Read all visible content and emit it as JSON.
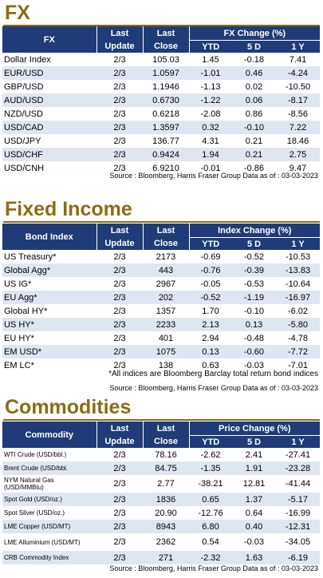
{
  "fx": {
    "title": "FX",
    "headers": {
      "name": "FX",
      "last_update": [
        "Last",
        "Update"
      ],
      "last_close": [
        "Last",
        "Close"
      ],
      "group": "FX Change (%)",
      "ytd": "YTD",
      "d5": "5 D",
      "y1": "1 Y"
    },
    "rows": [
      {
        "name": "Dollar Index",
        "update": "2/3",
        "close": "105.03",
        "ytd": "1.45",
        "d5": "-0.18",
        "y1": "7.41"
      },
      {
        "name": "EUR/USD",
        "update": "2/3",
        "close": "1.0597",
        "ytd": "-1.01",
        "d5": "0.46",
        "y1": "-4.24"
      },
      {
        "name": "GBP/USD",
        "update": "2/3",
        "close": "1.1946",
        "ytd": "-1.13",
        "d5": "0.02",
        "y1": "-10.50"
      },
      {
        "name": "AUD/USD",
        "update": "2/3",
        "close": "0.6730",
        "ytd": "-1.22",
        "d5": "0.06",
        "y1": "-8.17"
      },
      {
        "name": "NZD/USD",
        "update": "2/3",
        "close": "0.6218",
        "ytd": "-2.08",
        "d5": "0.86",
        "y1": "-8.56"
      },
      {
        "name": "USD/CAD",
        "update": "2/3",
        "close": "1.3597",
        "ytd": "0.32",
        "d5": "-0.10",
        "y1": "7.22"
      },
      {
        "name": "USD/JPY",
        "update": "2/3",
        "close": "136.77",
        "ytd": "4.31",
        "d5": "0.21",
        "y1": "18.46"
      },
      {
        "name": "USD/CHF",
        "update": "2/3",
        "close": "0.9424",
        "ytd": "1.94",
        "d5": "0.21",
        "y1": "2.75"
      },
      {
        "name": "USD/CNH",
        "update": "2/3",
        "close": "6.9210",
        "ytd": "-0.01",
        "d5": "-0.86",
        "y1": "9.47"
      }
    ],
    "source": "Source : Bloomberg, Harris Fraser Group Data as of : 03-03-2023"
  },
  "fixed_income": {
    "title": "Fixed Income",
    "headers": {
      "name": "Bond Index",
      "last_update": [
        "Last",
        "Update"
      ],
      "last_close": [
        "Last",
        "Close"
      ],
      "group": "Index Change (%)",
      "ytd": "YTD",
      "d5": "5 D",
      "y1": "1 Y"
    },
    "rows": [
      {
        "name": "US Treasury*",
        "update": "2/3",
        "close": "2173",
        "ytd": "-0.69",
        "d5": "-0.52",
        "y1": "-10.53"
      },
      {
        "name": "Global Agg*",
        "update": "2/3",
        "close": "443",
        "ytd": "-0.76",
        "d5": "-0.39",
        "y1": "-13.83"
      },
      {
        "name": "US IG*",
        "update": "2/3",
        "close": "2967",
        "ytd": "-0.05",
        "d5": "-0.53",
        "y1": "-10.64"
      },
      {
        "name": "EU Agg*",
        "update": "2/3",
        "close": "202",
        "ytd": "-0.52",
        "d5": "-1.19",
        "y1": "-16.97"
      },
      {
        "name": "Global HY*",
        "update": "2/3",
        "close": "1357",
        "ytd": "1.70",
        "d5": "-0.10",
        "y1": "-6.02"
      },
      {
        "name": "US HY*",
        "update": "2/3",
        "close": "2233",
        "ytd": "2.13",
        "d5": "0.13",
        "y1": "-5.80"
      },
      {
        "name": "EU HY*",
        "update": "2/3",
        "close": "401",
        "ytd": "2.94",
        "d5": "-0.48",
        "y1": "-4.78"
      },
      {
        "name": "EM USD*",
        "update": "2/3",
        "close": "1075",
        "ytd": "0.13",
        "d5": "-0.60",
        "y1": "-7.72"
      },
      {
        "name": "EM LC*",
        "update": "2/3",
        "close": "138",
        "ytd": "0.63",
        "d5": "-0.03",
        "y1": "-7.01"
      }
    ],
    "note": "*All indices are Bloomberg Barclay total return bond indices",
    "source": "Source : Bloomberg, Harris Fraser Group Data as of : 03-03-2023"
  },
  "commodities": {
    "title": "Commodities",
    "headers": {
      "name": "Commodity",
      "last_update": [
        "Last",
        "Update"
      ],
      "last_close": [
        "Last",
        "Close"
      ],
      "group": "Price Change (%)",
      "ytd": "YTD",
      "d5": "5 D",
      "y1": "1 Y"
    },
    "rows": [
      {
        "name": "WTI Crude (USD/bbl.)",
        "update": "2/3",
        "close": "78.16",
        "ytd": "-2.62",
        "d5": "2.41",
        "y1": "-27.41"
      },
      {
        "name": "Brent Crude (USD/bbl.",
        "update": "2/3",
        "close": "84.75",
        "ytd": "-1.35",
        "d5": "1.91",
        "y1": "-23.28"
      },
      {
        "name": "NYM Natural Gas (USD/MMBtu)",
        "update": "2/3",
        "close": "2.77",
        "ytd": "-38.21",
        "d5": "12.81",
        "y1": "-41.44"
      },
      {
        "name": "Spot Gold (USD/oz.)",
        "update": "2/3",
        "close": "1836",
        "ytd": "0.65",
        "d5": "1.37",
        "y1": "-5.17"
      },
      {
        "name": "Spot Silver (USD/oz.)",
        "update": "2/3",
        "close": "20.90",
        "ytd": "-12.76",
        "d5": "0.64",
        "y1": "-16.99"
      },
      {
        "name": "LME Copper (USD/MT)",
        "update": "2/3",
        "close": "8943",
        "ytd": "6.80",
        "d5": "0.40",
        "y1": "-12.31"
      },
      {
        "name": "LME Alluminium (USD/MT)",
        "update": "2/3",
        "close": "2362",
        "ytd": "0.54",
        "d5": "-0.03",
        "y1": "-34.05"
      },
      {
        "name": "CRB Commodity Index",
        "update": "2/3",
        "close": "271",
        "ytd": "-2.32",
        "d5": "1.63",
        "y1": "-6.19"
      }
    ],
    "source": "Source : Bloomberg, Harris Fraser Group Data as of : 03-03-2023"
  },
  "colors": {
    "header_bg": "#1f3c78",
    "title_gold": "#8a6d14",
    "stripe": "#dfe6f2"
  }
}
